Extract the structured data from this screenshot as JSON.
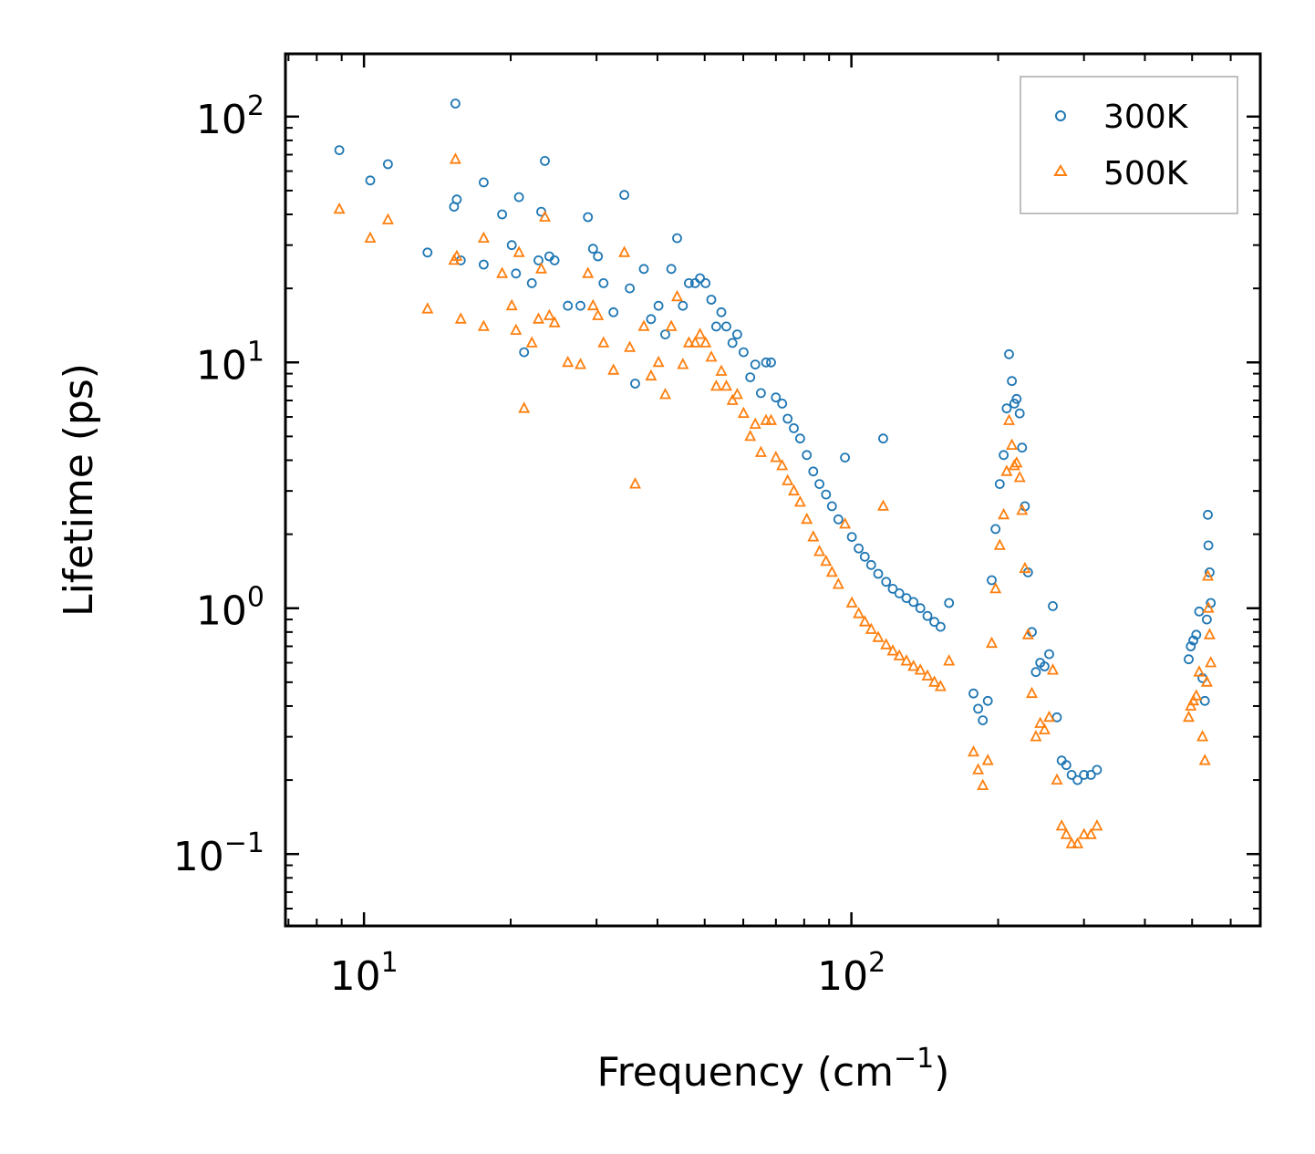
{
  "chart_data": {
    "type": "scatter",
    "title": "",
    "xlabel": "Frequency (cm",
    "xlabel_sup": "−1",
    "xlabel_end": ")",
    "ylabel": "Lifetime (ps)",
    "xscale": "log",
    "yscale": "log",
    "xlim": [
      6.9,
      690
    ],
    "ylim": [
      0.051,
      180
    ],
    "x_ticks": [
      {
        "value": 10,
        "base": "10",
        "exp": "1"
      },
      {
        "value": 100,
        "base": "10",
        "exp": "2"
      }
    ],
    "y_ticks": [
      {
        "value": 0.1,
        "base": "10",
        "exp": "−1"
      },
      {
        "value": 1,
        "base": "10",
        "exp": "0"
      },
      {
        "value": 10,
        "base": "10",
        "exp": "1"
      },
      {
        "value": 100,
        "base": "10",
        "exp": "2"
      }
    ],
    "legend_position": "top-right",
    "series": [
      {
        "name": "300K",
        "marker": "circle-open",
        "color": "#1f77b4",
        "points": [
          [
            8.9,
            73
          ],
          [
            10.3,
            55
          ],
          [
            11.2,
            64
          ],
          [
            13.5,
            28
          ],
          [
            15.3,
            43
          ],
          [
            15.4,
            113
          ],
          [
            15.5,
            46
          ],
          [
            15.8,
            26
          ],
          [
            17.6,
            54
          ],
          [
            17.6,
            25
          ],
          [
            19.2,
            40
          ],
          [
            20.1,
            30
          ],
          [
            20.5,
            23
          ],
          [
            20.8,
            47
          ],
          [
            21.3,
            11
          ],
          [
            22.1,
            21
          ],
          [
            22.8,
            26
          ],
          [
            23.1,
            41
          ],
          [
            23.5,
            66
          ],
          [
            24.0,
            27
          ],
          [
            24.6,
            26
          ],
          [
            26.2,
            17
          ],
          [
            27.8,
            17
          ],
          [
            28.8,
            39
          ],
          [
            29.5,
            29
          ],
          [
            30.2,
            27
          ],
          [
            31.0,
            21
          ],
          [
            32.5,
            16
          ],
          [
            34.2,
            48
          ],
          [
            35.1,
            20
          ],
          [
            36.0,
            8.2
          ],
          [
            37.5,
            24
          ],
          [
            38.8,
            15
          ],
          [
            40.2,
            17
          ],
          [
            41.5,
            13
          ],
          [
            42.7,
            24
          ],
          [
            43.9,
            32
          ],
          [
            45.1,
            17
          ],
          [
            46.4,
            21
          ],
          [
            47.8,
            21
          ],
          [
            48.9,
            22
          ],
          [
            50.2,
            21
          ],
          [
            51.6,
            18
          ],
          [
            52.8,
            14
          ],
          [
            54.1,
            16
          ],
          [
            55.4,
            14
          ],
          [
            57.0,
            12
          ],
          [
            58.3,
            13
          ],
          [
            60.1,
            11
          ],
          [
            62.0,
            8.7
          ],
          [
            63.5,
            9.8
          ],
          [
            65.2,
            7.5
          ],
          [
            66.8,
            10
          ],
          [
            68.4,
            10
          ],
          [
            70.0,
            7.2
          ],
          [
            72.1,
            6.8
          ],
          [
            74.0,
            5.9
          ],
          [
            76.2,
            5.4
          ],
          [
            78.5,
            4.9
          ],
          [
            81.0,
            4.2
          ],
          [
            83.5,
            3.6
          ],
          [
            86.0,
            3.2
          ],
          [
            88.7,
            2.9
          ],
          [
            91.2,
            2.6
          ],
          [
            94.0,
            2.3
          ],
          [
            97.0,
            4.1
          ],
          [
            100.2,
            1.95
          ],
          [
            103.5,
            1.75
          ],
          [
            106.5,
            1.62
          ],
          [
            109.8,
            1.5
          ],
          [
            113.5,
            1.38
          ],
          [
            116.2,
            4.9
          ],
          [
            117.8,
            1.28
          ],
          [
            121.6,
            1.2
          ],
          [
            125.4,
            1.15
          ],
          [
            129.7,
            1.1
          ],
          [
            134.1,
            1.06
          ],
          [
            138.5,
            1.0
          ],
          [
            143.2,
            0.93
          ],
          [
            148.0,
            0.88
          ],
          [
            152.4,
            0.84
          ],
          [
            158.6,
            1.05
          ],
          [
            178.0,
            0.45
          ],
          [
            182.0,
            0.39
          ],
          [
            186.0,
            0.35
          ],
          [
            190.5,
            0.42
          ],
          [
            194.0,
            1.3
          ],
          [
            197.6,
            2.1
          ],
          [
            201.5,
            3.2
          ],
          [
            205.3,
            4.2
          ],
          [
            208.2,
            6.5
          ],
          [
            210.6,
            10.8
          ],
          [
            213.4,
            8.4
          ],
          [
            215.9,
            6.8
          ],
          [
            218.2,
            7.1
          ],
          [
            221.5,
            6.2
          ],
          [
            224.0,
            4.5
          ],
          [
            227.0,
            2.6
          ],
          [
            230.3,
            1.4
          ],
          [
            234.5,
            0.8
          ],
          [
            239.0,
            0.55
          ],
          [
            244.0,
            0.6
          ],
          [
            249.0,
            0.58
          ],
          [
            254.5,
            0.65
          ],
          [
            259.0,
            1.02
          ],
          [
            264.0,
            0.36
          ],
          [
            270.0,
            0.24
          ],
          [
            276.0,
            0.23
          ],
          [
            283.0,
            0.21
          ],
          [
            291.0,
            0.2
          ],
          [
            300.0,
            0.21
          ],
          [
            310.0,
            0.21
          ],
          [
            319.0,
            0.22
          ],
          [
            492.0,
            0.62
          ],
          [
            497.0,
            0.7
          ],
          [
            503.0,
            0.74
          ],
          [
            510.0,
            0.78
          ],
          [
            517.0,
            0.97
          ],
          [
            525.0,
            0.52
          ],
          [
            531.0,
            0.42
          ],
          [
            536.0,
            0.9
          ],
          [
            538.5,
            2.4
          ],
          [
            540.0,
            1.8
          ],
          [
            543.0,
            1.4
          ],
          [
            546.0,
            1.05
          ]
        ]
      },
      {
        "name": "500K",
        "marker": "triangle-open",
        "color": "#ff7f0e",
        "points": [
          [
            8.9,
            42
          ],
          [
            10.3,
            32
          ],
          [
            11.2,
            38
          ],
          [
            13.5,
            16.5
          ],
          [
            15.3,
            26
          ],
          [
            15.4,
            67
          ],
          [
            15.5,
            27
          ],
          [
            15.8,
            15
          ],
          [
            17.6,
            32
          ],
          [
            17.6,
            14
          ],
          [
            19.2,
            23
          ],
          [
            20.1,
            17
          ],
          [
            20.5,
            13.5
          ],
          [
            20.8,
            28
          ],
          [
            21.3,
            6.5
          ],
          [
            22.1,
            12
          ],
          [
            22.8,
            15
          ],
          [
            23.1,
            24
          ],
          [
            23.5,
            39
          ],
          [
            24.0,
            15.5
          ],
          [
            24.6,
            14.5
          ],
          [
            26.2,
            10
          ],
          [
            27.8,
            9.8
          ],
          [
            28.8,
            23
          ],
          [
            29.5,
            17
          ],
          [
            30.2,
            15.5
          ],
          [
            31.0,
            12
          ],
          [
            32.5,
            9.3
          ],
          [
            34.2,
            28
          ],
          [
            35.1,
            11.5
          ],
          [
            36.0,
            3.2
          ],
          [
            37.5,
            14
          ],
          [
            38.8,
            8.8
          ],
          [
            40.2,
            10
          ],
          [
            41.5,
            7.4
          ],
          [
            42.7,
            14
          ],
          [
            43.9,
            18.5
          ],
          [
            45.1,
            9.8
          ],
          [
            46.4,
            12
          ],
          [
            47.8,
            12
          ],
          [
            48.9,
            13
          ],
          [
            50.2,
            12
          ],
          [
            51.6,
            10.5
          ],
          [
            52.8,
            8
          ],
          [
            54.1,
            9.2
          ],
          [
            55.4,
            8
          ],
          [
            57.0,
            7
          ],
          [
            58.3,
            7.4
          ],
          [
            60.1,
            6.2
          ],
          [
            62.0,
            5
          ],
          [
            63.5,
            5.6
          ],
          [
            65.2,
            4.3
          ],
          [
            66.8,
            5.8
          ],
          [
            68.4,
            5.8
          ],
          [
            70.0,
            4.1
          ],
          [
            72.1,
            3.8
          ],
          [
            74.0,
            3.3
          ],
          [
            76.2,
            3.0
          ],
          [
            78.5,
            2.7
          ],
          [
            81.0,
            2.3
          ],
          [
            83.5,
            1.95
          ],
          [
            86.0,
            1.7
          ],
          [
            88.7,
            1.55
          ],
          [
            91.2,
            1.4
          ],
          [
            94.0,
            1.25
          ],
          [
            97.0,
            2.2
          ],
          [
            100.2,
            1.05
          ],
          [
            103.5,
            0.95
          ],
          [
            106.5,
            0.88
          ],
          [
            109.8,
            0.82
          ],
          [
            113.5,
            0.76
          ],
          [
            116.2,
            2.6
          ],
          [
            117.8,
            0.71
          ],
          [
            121.6,
            0.67
          ],
          [
            125.4,
            0.64
          ],
          [
            129.7,
            0.61
          ],
          [
            134.1,
            0.58
          ],
          [
            138.5,
            0.56
          ],
          [
            143.2,
            0.53
          ],
          [
            148.0,
            0.5
          ],
          [
            152.4,
            0.48
          ],
          [
            158.6,
            0.61
          ],
          [
            178.0,
            0.26
          ],
          [
            182.0,
            0.22
          ],
          [
            186.0,
            0.19
          ],
          [
            190.5,
            0.24
          ],
          [
            194.0,
            0.72
          ],
          [
            197.6,
            1.2
          ],
          [
            201.5,
            1.8
          ],
          [
            205.3,
            2.4
          ],
          [
            208.2,
            3.6
          ],
          [
            210.6,
            5.8
          ],
          [
            213.4,
            4.6
          ],
          [
            215.9,
            3.8
          ],
          [
            218.2,
            3.9
          ],
          [
            221.5,
            3.4
          ],
          [
            224.0,
            2.5
          ],
          [
            227.0,
            1.45
          ],
          [
            230.3,
            0.78
          ],
          [
            234.5,
            0.45
          ],
          [
            239.0,
            0.3
          ],
          [
            244.0,
            0.34
          ],
          [
            249.0,
            0.32
          ],
          [
            254.5,
            0.36
          ],
          [
            259.0,
            0.56
          ],
          [
            264.0,
            0.2
          ],
          [
            270.0,
            0.13
          ],
          [
            276.0,
            0.12
          ],
          [
            283.0,
            0.11
          ],
          [
            291.0,
            0.11
          ],
          [
            300.0,
            0.12
          ],
          [
            310.0,
            0.12
          ],
          [
            319.0,
            0.13
          ],
          [
            492.0,
            0.36
          ],
          [
            497.0,
            0.4
          ],
          [
            503.0,
            0.42
          ],
          [
            510.0,
            0.44
          ],
          [
            517.0,
            0.55
          ],
          [
            525.0,
            0.3
          ],
          [
            531.0,
            0.24
          ],
          [
            536.0,
            0.5
          ],
          [
            538.5,
            1.35
          ],
          [
            540.0,
            1.0
          ],
          [
            543.0,
            0.78
          ],
          [
            546.0,
            0.6
          ]
        ]
      }
    ]
  }
}
